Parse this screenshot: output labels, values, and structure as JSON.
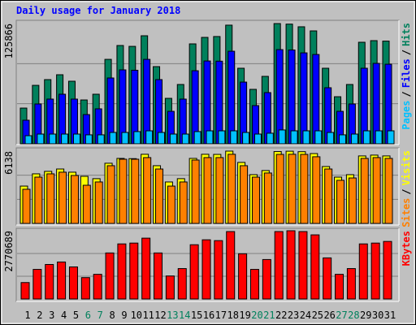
{
  "legend_separator": "/",
  "chart_data": [
    {
      "type": "bar",
      "title": "Daily usage for January 2018",
      "ylim": [
        0,
        125866
      ],
      "yticks": [
        125866
      ],
      "series": [
        {
          "name": "Hits",
          "color": "#00805c",
          "values": [
            37400,
            61200,
            67200,
            72300,
            65500,
            45900,
            51900,
            88400,
            102900,
            102000,
            113100,
            80800,
            47600,
            62100,
            104600,
            111400,
            112300,
            124200,
            79100,
            57000,
            70600,
            125866,
            125300,
            122500,
            118200,
            79100,
            49300,
            62100,
            106300,
            108000,
            107500
          ]
        },
        {
          "name": "Files",
          "color": "#0000ff",
          "values": [
            24700,
            41700,
            46800,
            51900,
            46800,
            30600,
            36600,
            68900,
            77400,
            77000,
            88400,
            67200,
            34000,
            46800,
            76500,
            86700,
            86500,
            96900,
            64600,
            40000,
            53600,
            98600,
            98200,
            95200,
            93500,
            58700,
            34000,
            41700,
            79100,
            84200,
            83300
          ]
        },
        {
          "name": "Pages",
          "color": "#00c0ff",
          "values": [
            8500,
            10200,
            10200,
            10200,
            10200,
            9400,
            9400,
            11900,
            11900,
            12800,
            13600,
            11900,
            10200,
            10200,
            12800,
            13600,
            13600,
            13600,
            11900,
            10200,
            11100,
            14500,
            13600,
            13600,
            13600,
            11900,
            9400,
            10200,
            13600,
            13600,
            13600
          ]
        }
      ]
    },
    {
      "type": "bar",
      "ylim": [
        0,
        6138
      ],
      "yticks": [
        6138
      ],
      "series": [
        {
          "name": "Visits",
          "color": "#ffff00",
          "values": [
            3170,
            4210,
            4420,
            4620,
            4350,
            4000,
            3800,
            5110,
            5520,
            5500,
            5870,
            4900,
            3520,
            3800,
            5520,
            5870,
            5860,
            6138,
            5180,
            4140,
            4490,
            6100,
            6130,
            6090,
            5930,
            4830,
            3930,
            4140,
            5730,
            5800,
            5730
          ]
        },
        {
          "name": "Sites",
          "color": "#ff8000",
          "values": [
            2900,
            3930,
            4210,
            4350,
            4070,
            3240,
            3520,
            4900,
            5450,
            5450,
            5590,
            4620,
            3170,
            3520,
            5380,
            5590,
            5590,
            5870,
            4900,
            3930,
            4280,
            5860,
            5870,
            5860,
            5660,
            4620,
            3660,
            3860,
            5520,
            5590,
            5520
          ]
        }
      ]
    },
    {
      "type": "bar",
      "ylim": [
        0,
        2770689
      ],
      "yticks": [
        2770689
      ],
      "categories": [
        "1",
        "2",
        "3",
        "4",
        "5",
        "6",
        "7",
        "8",
        "9",
        "10",
        "11",
        "12",
        "13",
        "14",
        "15",
        "16",
        "17",
        "18",
        "19",
        "20",
        "21",
        "22",
        "23",
        "24",
        "25",
        "26",
        "27",
        "28",
        "29",
        "30",
        "31"
      ],
      "category_colors": [
        "#000000",
        "#000000",
        "#000000",
        "#000000",
        "#000000",
        "#00805c",
        "#00805c",
        "#000000",
        "#000000",
        "#000000",
        "#000000",
        "#000000",
        "#00805c",
        "#00805c",
        "#000000",
        "#000000",
        "#000000",
        "#000000",
        "#000000",
        "#00805c",
        "#00805c",
        "#000000",
        "#000000",
        "#000000",
        "#000000",
        "#000000",
        "#00805c",
        "#00805c",
        "#000000",
        "#000000",
        "#000000"
      ],
      "series": [
        {
          "name": "KBytes",
          "color": "#ff0000",
          "values": [
            667600,
            1201800,
            1402000,
            1502200,
            1301900,
            867900,
            1001500,
            1869400,
            2236600,
            2270000,
            2470300,
            1869400,
            934700,
            1235100,
            2203200,
            2403500,
            2370100,
            2737300,
            1836000,
            1201800,
            1602300,
            2737300,
            2770689,
            2737300,
            2603800,
            1669100,
            1001500,
            1235100,
            2236600,
            2270000,
            2336700
          ]
        }
      ]
    }
  ]
}
